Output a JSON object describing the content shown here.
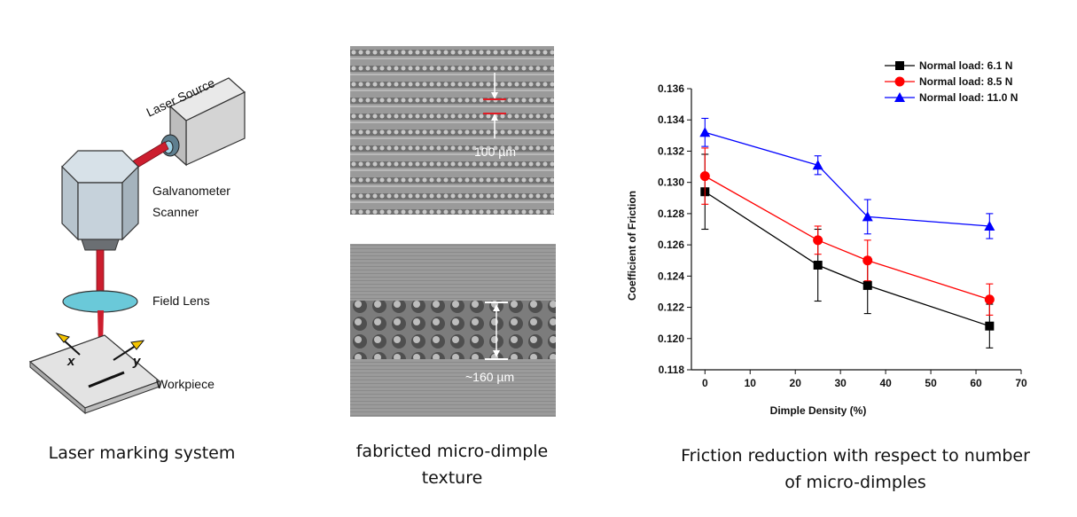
{
  "laser_system": {
    "labels": {
      "laser_source": "Laser Source",
      "galvanometer_line1": "Galvanometer",
      "galvanometer_line2": "Scanner",
      "field_lens": "Field Lens",
      "workpiece": "Workpiece",
      "axis_x": "x",
      "axis_y": "y"
    },
    "caption": "Laser marking system"
  },
  "micrographs": {
    "top_scale": "100 µm",
    "bottom_scale": "~160 µm",
    "caption_line1": "fabricted micro-dimple",
    "caption_line2": "texture"
  },
  "friction_chart": {
    "caption_line1": "Friction reduction with respect to number",
    "caption_line2": "of micro-dimples"
  },
  "chart_data": {
    "type": "line",
    "xlabel": "Dimple Density (%)",
    "ylabel": "Coefficient of Friction",
    "xlim": [
      -3,
      70
    ],
    "ylim": [
      0.118,
      0.136
    ],
    "x_ticks": [
      "0",
      "10",
      "20",
      "30",
      "40",
      "50",
      "60",
      "70"
    ],
    "y_ticks": [
      "0.118",
      "0.120",
      "0.122",
      "0.124",
      "0.126",
      "0.128",
      "0.130",
      "0.132",
      "0.134",
      "0.136"
    ],
    "legend_position": "top-right",
    "x": [
      0,
      25,
      36,
      63
    ],
    "series": [
      {
        "name": "Normal load: 6.1 N",
        "color": "#000000",
        "marker": "square",
        "values": [
          0.1294,
          0.1247,
          0.1234,
          0.1208
        ],
        "errors": [
          0.0024,
          0.0023,
          0.0018,
          0.0014
        ]
      },
      {
        "name": "Normal load: 8.5 N",
        "color": "#ff0000",
        "marker": "circle",
        "values": [
          0.1304,
          0.1263,
          0.125,
          0.1225
        ],
        "errors": [
          0.0018,
          0.0009,
          0.0013,
          0.001
        ]
      },
      {
        "name": "Normal load: 11.0 N",
        "color": "#0000ff",
        "marker": "triangle",
        "values": [
          0.1332,
          0.1311,
          0.1278,
          0.1272
        ],
        "errors": [
          0.0009,
          0.0006,
          0.0011,
          0.0008
        ]
      }
    ]
  }
}
